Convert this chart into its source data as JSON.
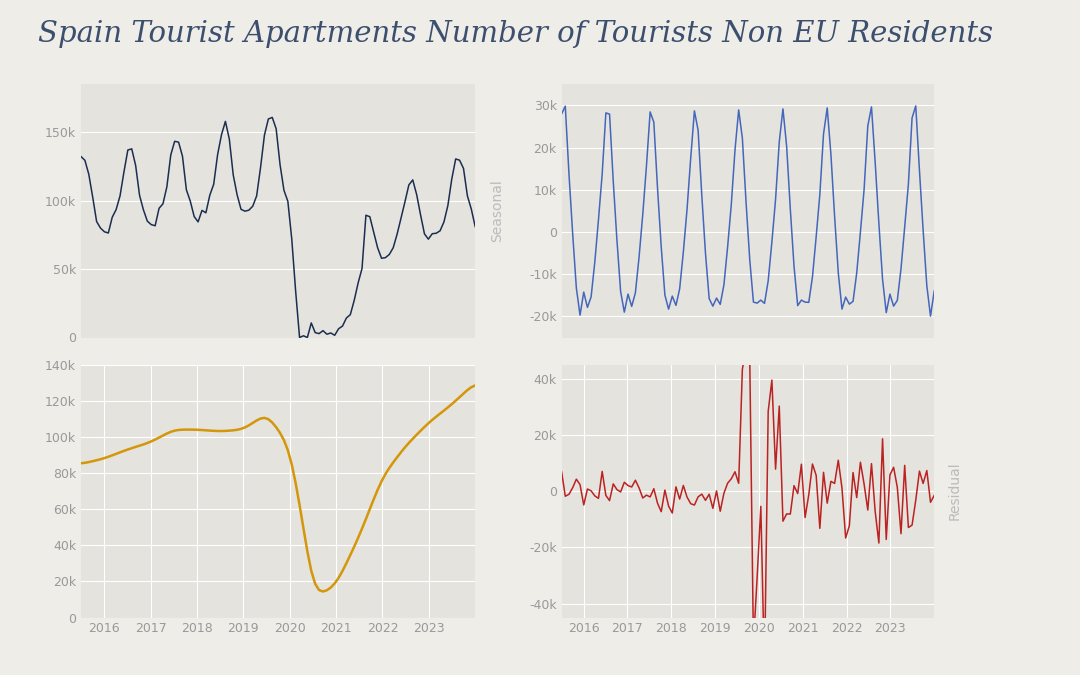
{
  "title": "Spain Tourist Apartments Number of Tourists Non EU Residents",
  "title_color": "#3d4f6e",
  "title_fontsize": 21,
  "title_font": "serif",
  "bg_color": "#eeede8",
  "plot_bg_color": "#e4e3de",
  "grid_color": "#ffffff",
  "label_seasonal": "Seasonal",
  "label_residual": "Residual",
  "line_color_observed": "#1c2e50",
  "line_color_trend": "#d4960a",
  "line_color_seasonal": "#4466bb",
  "line_color_residual": "#bb2222"
}
